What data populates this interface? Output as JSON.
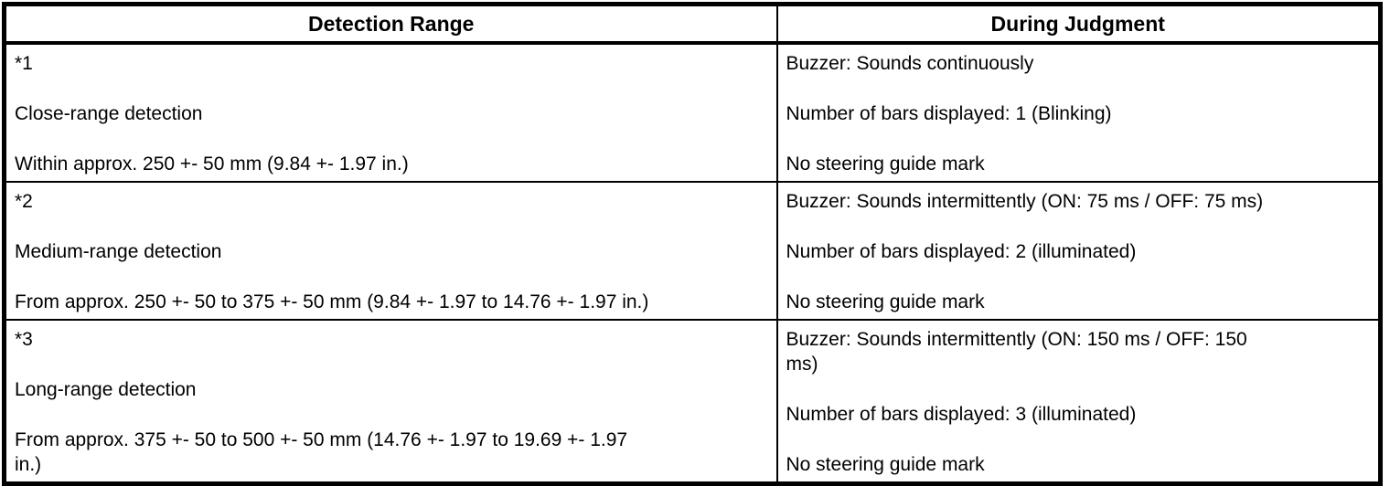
{
  "table": {
    "headers": {
      "detection_range": "Detection Range",
      "during_judgment": "During Judgment"
    },
    "rows": [
      {
        "detection_range": [
          "*1",
          "Close-range detection",
          "Within approx. 250 +- 50 mm (9.84 +- 1.97 in.)"
        ],
        "during_judgment": [
          "Buzzer: Sounds continuously",
          "Number of bars displayed: 1 (Blinking)",
          "No steering guide mark"
        ]
      },
      {
        "detection_range": [
          "*2",
          "Medium-range detection",
          "From approx. 250 +- 50 to 375 +- 50 mm (9.84 +- 1.97 to 14.76 +- 1.97 in.)"
        ],
        "during_judgment": [
          "Buzzer: Sounds intermittently (ON: 75 ms / OFF: 75 ms)",
          "Number of bars displayed: 2 (illuminated)",
          "No steering guide mark"
        ]
      },
      {
        "detection_range": [
          "*3",
          "Long-range detection",
          "From approx. 375 +- 50 to 500 +- 50 mm (14.76 +- 1.97 to 19.69 +- 1.97\nin.)"
        ],
        "during_judgment": [
          "Buzzer: Sounds intermittently (ON: 150 ms / OFF: 150\nms)",
          "Number of bars displayed: 3 (illuminated)",
          "No steering guide mark"
        ]
      }
    ],
    "border_color": "#000000",
    "text_color": "#000000",
    "background_color": "#ffffff"
  }
}
